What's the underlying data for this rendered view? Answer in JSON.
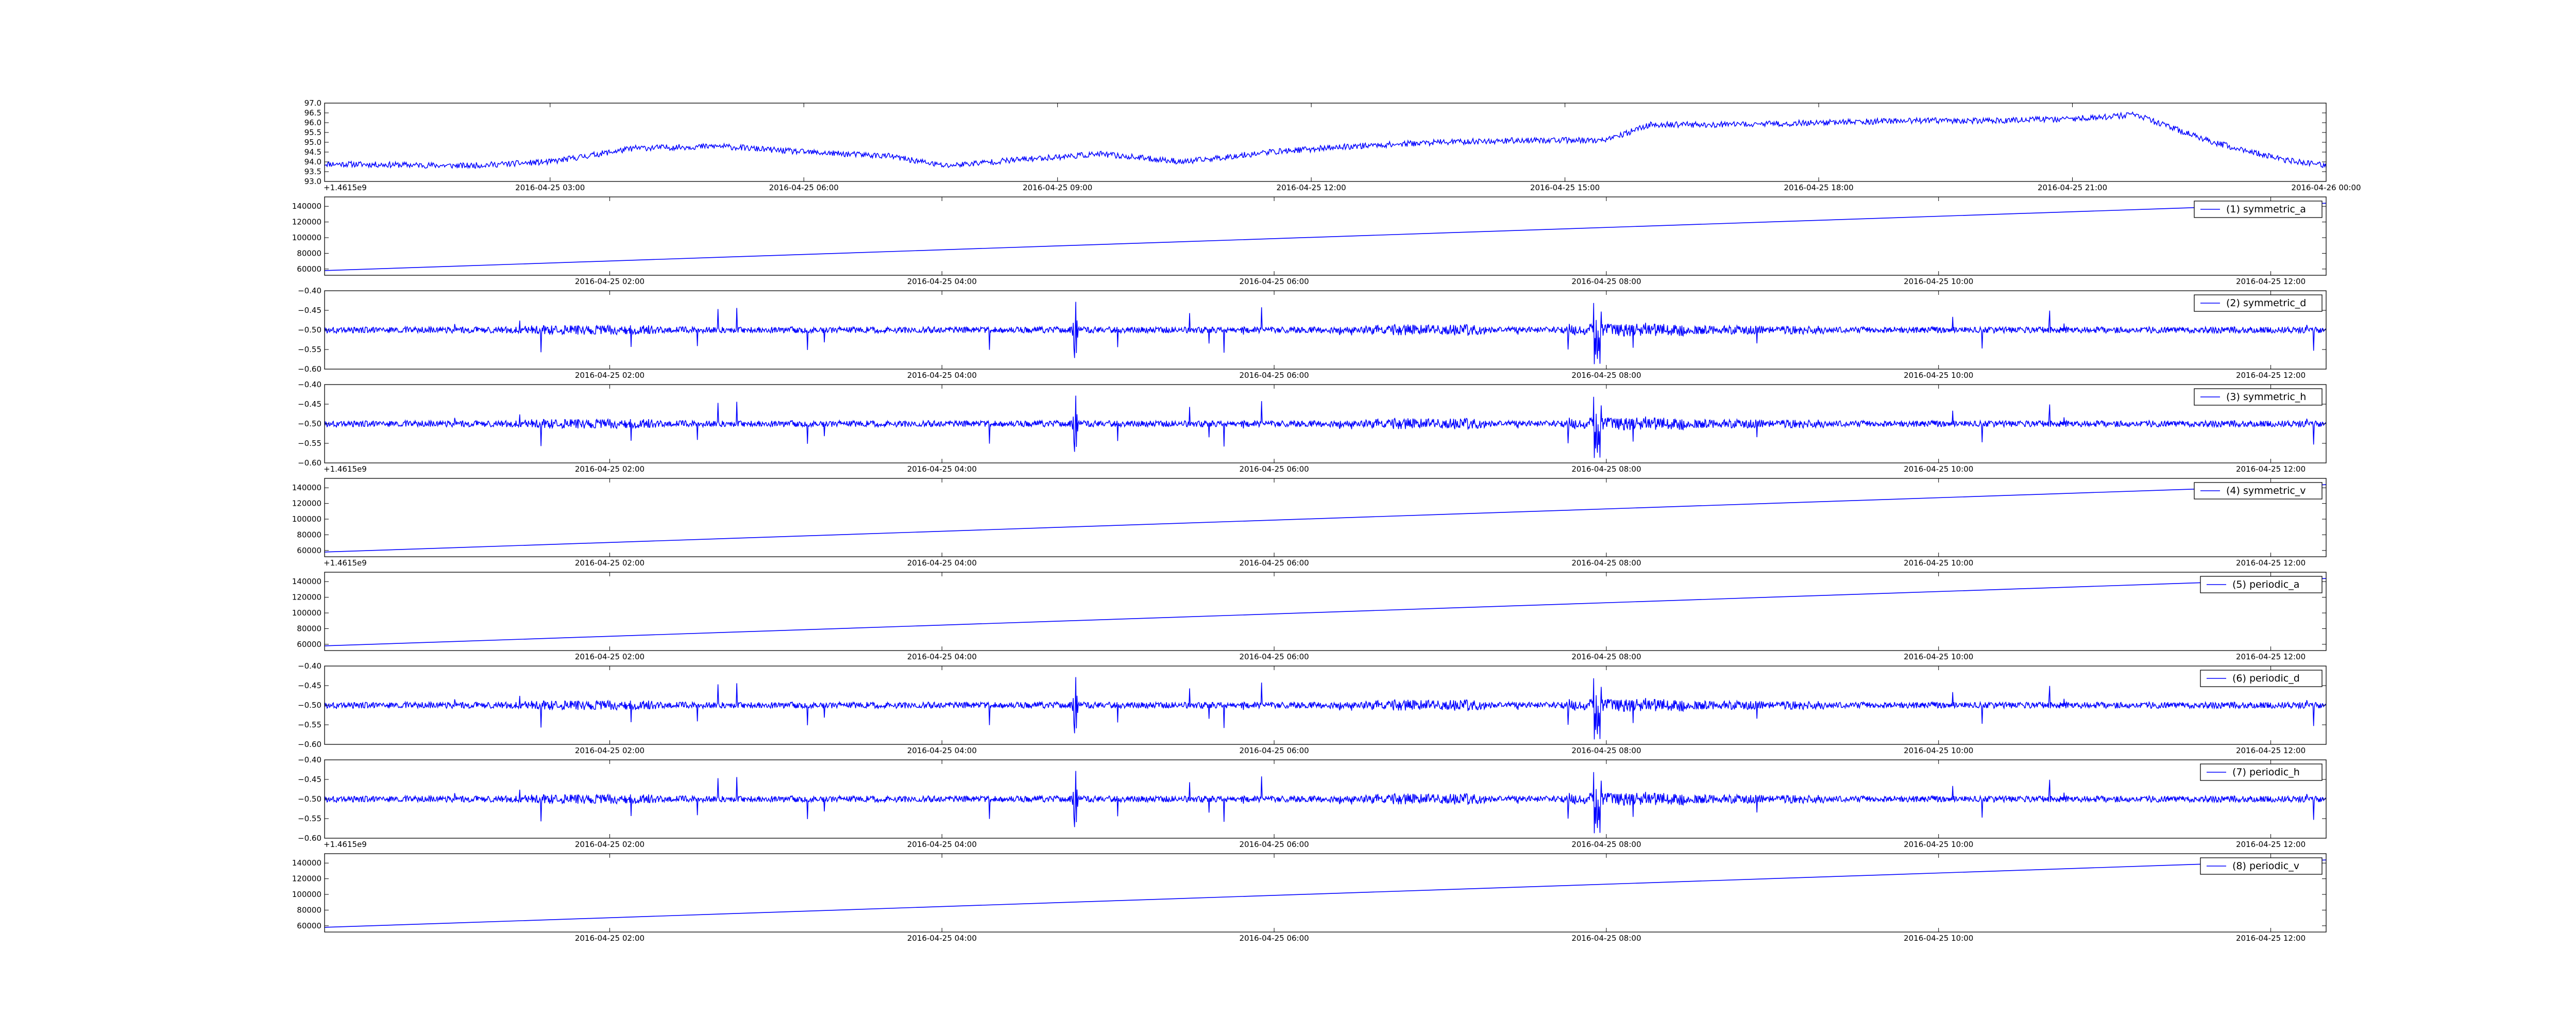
{
  "chart_data": [
    {
      "type": "line",
      "id": "p0",
      "y_ticks": [
        "93.0",
        "93.5",
        "94.0",
        "94.5",
        "95.0",
        "95.5",
        "96.0",
        "96.5",
        "97.0"
      ],
      "x_ticks": [
        "2016-04-25 03:00",
        "2016-04-25 06:00",
        "2016-04-25 09:00",
        "2016-04-25 12:00",
        "2016-04-25 15:00",
        "2016-04-25 18:00",
        "2016-04-25 21:00",
        "2016-04-26 00:00"
      ],
      "x_range": [
        "2016-04-25 00:20",
        "2016-04-26 00:00"
      ],
      "ylim": [
        93.0,
        97.0
      ],
      "offset_label": "+1.4615e9",
      "series": [
        {
          "color": "#0000ff",
          "style": "noisy",
          "noise": 0.15,
          "x": [
            "2016-04-25 00:20",
            "2016-04-25 02:00",
            "2016-04-25 03:00",
            "2016-04-25 04:00",
            "2016-04-25 05:00",
            "2016-04-25 06:00",
            "2016-04-25 07:00",
            "2016-04-25 07:40",
            "2016-04-25 08:30",
            "2016-04-25 09:30",
            "2016-04-25 10:30",
            "2016-04-25 11:30",
            "2016-04-25 12:30",
            "2016-04-25 13:30",
            "2016-04-25 14:30",
            "2016-04-25 15:30",
            "2016-04-25 16:00",
            "2016-04-25 17:00",
            "2016-04-25 18:00",
            "2016-04-25 19:00",
            "2016-04-25 20:00",
            "2016-04-25 21:00",
            "2016-04-25 21:45",
            "2016-04-25 22:00",
            "2016-04-25 22:40",
            "2016-04-25 23:30",
            "2016-04-26 00:00"
          ],
          "values": [
            93.9,
            93.8,
            94.0,
            94.7,
            94.8,
            94.5,
            94.3,
            93.8,
            94.1,
            94.4,
            94.0,
            94.5,
            94.8,
            95.0,
            95.1,
            95.1,
            95.9,
            95.9,
            96.0,
            96.1,
            96.1,
            96.2,
            96.4,
            96.0,
            95.0,
            94.1,
            93.8
          ]
        }
      ]
    },
    {
      "type": "line",
      "id": "p1",
      "legend": "(1) symmetric_a",
      "y_ticks": [
        "60000",
        "80000",
        "100000",
        "120000",
        "140000"
      ],
      "x_ticks": [
        "2016-04-25 02:00",
        "2016-04-25 04:00",
        "2016-04-25 06:00",
        "2016-04-25 08:00",
        "2016-04-25 10:00",
        "2016-04-25 12:00"
      ],
      "x_range": [
        "2016-04-25 00:17",
        "2016-04-25 12:20"
      ],
      "ylim": [
        52000,
        152000
      ],
      "series": [
        {
          "color": "#0000ff",
          "style": "linear",
          "x": [
            "2016-04-25 00:17",
            "2016-04-25 12:20"
          ],
          "values": [
            58000,
            144000
          ]
        }
      ]
    },
    {
      "type": "line",
      "id": "p2",
      "legend": "(2) symmetric_d",
      "y_ticks": [
        "−0.60",
        "−0.55",
        "−0.50",
        "−0.45",
        "−0.40"
      ],
      "x_ticks": [
        "2016-04-25 02:00",
        "2016-04-25 04:00",
        "2016-04-25 06:00",
        "2016-04-25 08:00",
        "2016-04-25 10:00",
        "2016-04-25 12:00"
      ],
      "x_range": [
        "2016-04-25 00:17",
        "2016-04-25 12:20"
      ],
      "ylim": [
        -0.6,
        -0.4
      ],
      "series": [
        {
          "color": "#0000ff",
          "style": "signal",
          "baseline": -0.5,
          "seed": 3
        }
      ]
    },
    {
      "type": "line",
      "id": "p3",
      "legend": "(3) symmetric_h",
      "y_ticks": [
        "−0.60",
        "−0.55",
        "−0.50",
        "−0.45",
        "−0.40"
      ],
      "x_ticks": [
        "2016-04-25 02:00",
        "2016-04-25 04:00",
        "2016-04-25 06:00",
        "2016-04-25 08:00",
        "2016-04-25 10:00",
        "2016-04-25 12:00"
      ],
      "x_range": [
        "2016-04-25 00:17",
        "2016-04-25 12:20"
      ],
      "ylim": [
        -0.6,
        -0.4
      ],
      "offset_label": "+1.4615e9",
      "series": [
        {
          "color": "#0000ff",
          "style": "signal",
          "baseline": -0.5,
          "seed": 3
        }
      ]
    },
    {
      "type": "line",
      "id": "p4",
      "legend": "(4) symmetric_v",
      "y_ticks": [
        "60000",
        "80000",
        "100000",
        "120000",
        "140000"
      ],
      "x_ticks": [
        "2016-04-25 02:00",
        "2016-04-25 04:00",
        "2016-04-25 06:00",
        "2016-04-25 08:00",
        "2016-04-25 10:00",
        "2016-04-25 12:00"
      ],
      "x_range": [
        "2016-04-25 00:17",
        "2016-04-25 12:20"
      ],
      "ylim": [
        52000,
        152000
      ],
      "offset_label": "+1.4615e9",
      "series": [
        {
          "color": "#0000ff",
          "style": "linear",
          "x": [
            "2016-04-25 00:17",
            "2016-04-25 12:20"
          ],
          "values": [
            58000,
            144000
          ]
        }
      ]
    },
    {
      "type": "line",
      "id": "p5",
      "legend": "(5) periodic_a",
      "y_ticks": [
        "60000",
        "80000",
        "100000",
        "120000",
        "140000"
      ],
      "x_ticks": [
        "2016-04-25 02:00",
        "2016-04-25 04:00",
        "2016-04-25 06:00",
        "2016-04-25 08:00",
        "2016-04-25 10:00",
        "2016-04-25 12:00"
      ],
      "x_range": [
        "2016-04-25 00:17",
        "2016-04-25 12:20"
      ],
      "ylim": [
        52000,
        152000
      ],
      "series": [
        {
          "color": "#0000ff",
          "style": "linear",
          "x": [
            "2016-04-25 00:17",
            "2016-04-25 12:20"
          ],
          "values": [
            58000,
            144000
          ]
        }
      ]
    },
    {
      "type": "line",
      "id": "p6",
      "legend": "(6) periodic_d",
      "y_ticks": [
        "−0.60",
        "−0.55",
        "−0.50",
        "−0.45",
        "−0.40"
      ],
      "x_ticks": [
        "2016-04-25 02:00",
        "2016-04-25 04:00",
        "2016-04-25 06:00",
        "2016-04-25 08:00",
        "2016-04-25 10:00",
        "2016-04-25 12:00"
      ],
      "x_range": [
        "2016-04-25 00:17",
        "2016-04-25 12:20"
      ],
      "ylim": [
        -0.6,
        -0.4
      ],
      "series": [
        {
          "color": "#0000ff",
          "style": "signal",
          "baseline": -0.5,
          "seed": 3
        }
      ]
    },
    {
      "type": "line",
      "id": "p7",
      "legend": "(7) periodic_h",
      "y_ticks": [
        "−0.60",
        "−0.55",
        "−0.50",
        "−0.45",
        "−0.40"
      ],
      "x_ticks": [
        "2016-04-25 02:00",
        "2016-04-25 04:00",
        "2016-04-25 06:00",
        "2016-04-25 08:00",
        "2016-04-25 10:00",
        "2016-04-25 12:00"
      ],
      "x_range": [
        "2016-04-25 00:17",
        "2016-04-25 12:20"
      ],
      "ylim": [
        -0.6,
        -0.4
      ],
      "offset_label": "+1.4615e9",
      "series": [
        {
          "color": "#0000ff",
          "style": "signal",
          "baseline": -0.5,
          "seed": 3
        }
      ]
    },
    {
      "type": "line",
      "id": "p8",
      "legend": "(8) periodic_v",
      "y_ticks": [
        "60000",
        "80000",
        "100000",
        "120000",
        "140000"
      ],
      "x_ticks": [
        "2016-04-25 02:00",
        "2016-04-25 04:00",
        "2016-04-25 06:00",
        "2016-04-25 08:00",
        "2016-04-25 10:00",
        "2016-04-25 12:00"
      ],
      "x_range": [
        "2016-04-25 00:17",
        "2016-04-25 12:20"
      ],
      "ylim": [
        52000,
        152000
      ],
      "series": [
        {
          "color": "#0000ff",
          "style": "linear",
          "x": [
            "2016-04-25 00:17",
            "2016-04-25 12:20"
          ],
          "values": [
            58000,
            144000
          ]
        }
      ]
    }
  ]
}
